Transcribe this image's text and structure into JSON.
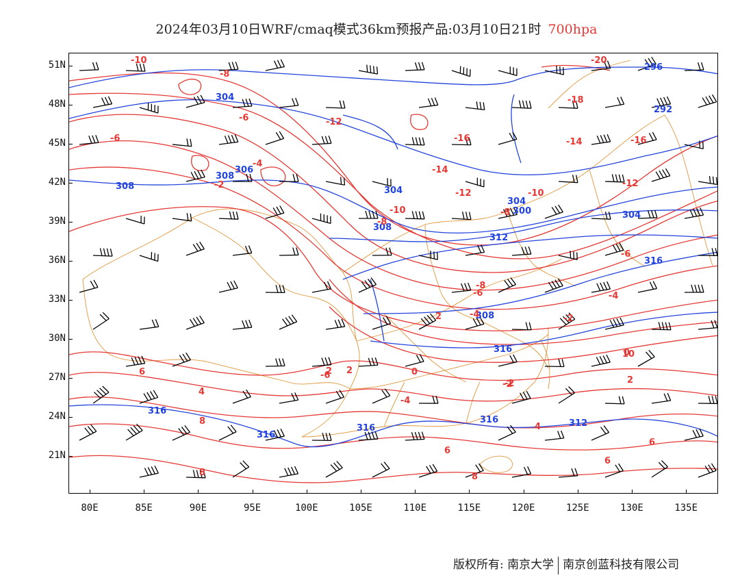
{
  "title": {
    "main": "2024年03月10日WRF/cmaq模式36km预报产品:03月10日21时",
    "level": "700hpa"
  },
  "colors": {
    "temperature": "#e53935",
    "height": "#2244dd",
    "border": "#e0963a",
    "wind": "#000000"
  },
  "axes": {
    "lat_labels": [
      "51N",
      "48N",
      "45N",
      "42N",
      "39N",
      "36N",
      "33N",
      "30N",
      "27N",
      "24N",
      "21N"
    ],
    "lon_labels": [
      "80E",
      "85E",
      "90E",
      "95E",
      "100E",
      "105E",
      "110E",
      "115E",
      "120E",
      "125E",
      "130E",
      "135E"
    ]
  },
  "height_labels": [
    "308",
    "304",
    "296",
    "292",
    "306",
    "308",
    "304",
    "300",
    "304",
    "304",
    "308",
    "312",
    "316",
    "308",
    "316",
    "312",
    "316",
    "316",
    "316",
    "316"
  ],
  "temperature_labels": [
    "-10",
    "-8",
    "-20",
    "-6",
    "-12",
    "-18",
    "-6",
    "-16",
    "-14",
    "-16",
    "-4",
    "-14",
    "-12",
    "-2",
    "-12",
    "-10",
    "-10",
    "-8",
    "-8",
    "-6",
    "-8",
    "-6",
    "-4",
    "-4",
    "-2",
    "0",
    "2",
    "0",
    "-6",
    "-2",
    "-4",
    "2",
    "4",
    "-2",
    "2",
    "4",
    "6",
    "6",
    "8",
    "8",
    "10",
    "2",
    "6",
    "6",
    "8"
  ],
  "footer": {
    "left": "版权所有: 南京大学",
    "right": "南京创蓝科技有限公司"
  }
}
